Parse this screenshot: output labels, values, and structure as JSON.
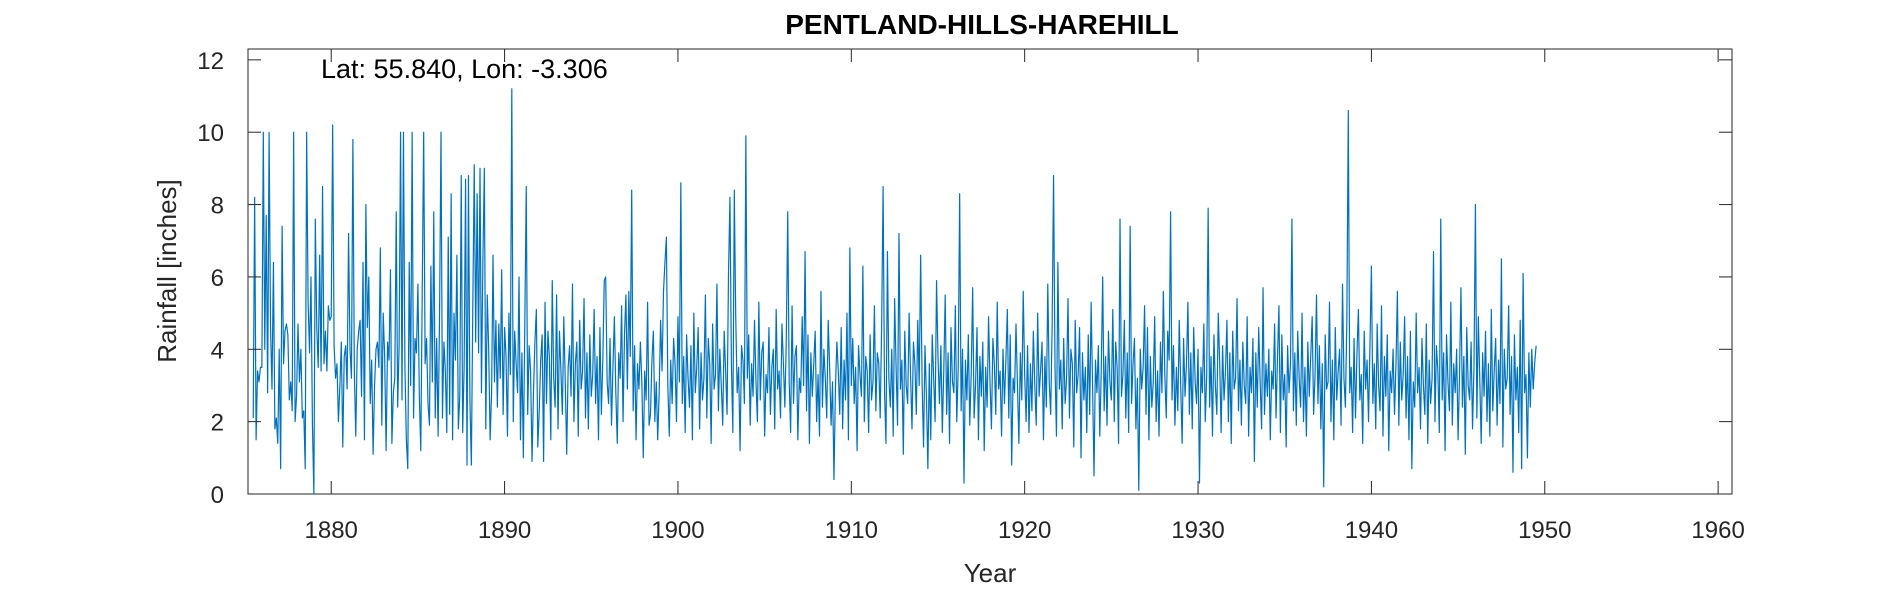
{
  "chart_data": {
    "type": "line",
    "title": "PENTLAND-HILLS-HAREHILL",
    "xlabel": "Year",
    "ylabel": "Rainfall [inches]",
    "annotation": "Lat: 55.840, Lon: -3.306",
    "xlim": [
      1875.2,
      1960.8
    ],
    "ylim": [
      0,
      12.3
    ],
    "xticks": [
      1880,
      1890,
      1900,
      1910,
      1920,
      1930,
      1940,
      1950,
      1960
    ],
    "yticks": [
      0,
      2,
      4,
      6,
      8,
      10,
      12
    ],
    "grid": false,
    "line_color": "#0072BD",
    "series": [
      {
        "x_start": 1875.5,
        "x_step": 0.0833333,
        "values": [
          2.1,
          8.2,
          1.5,
          3.4,
          3.1,
          3.5,
          3.5,
          10.0,
          4.0,
          7.7,
          2.8,
          10.0,
          4.6,
          2.9,
          6.4,
          1.8,
          2.1,
          1.4,
          4.0,
          0.7,
          7.4,
          3.6,
          4.5,
          4.7,
          4.4,
          2.6,
          3.1,
          2.3,
          10.0,
          2.0,
          2.7,
          4.7,
          3.1,
          4.0,
          2.1,
          2.3,
          0.7,
          10.0,
          5.3,
          3.9,
          6.0,
          1.9,
          0.0,
          7.6,
          4.6,
          3.5,
          6.6,
          3.4,
          8.5,
          3.6,
          4.5,
          3.4,
          5.2,
          4.8,
          4.9,
          10.2,
          4.1,
          3.2,
          3.6,
          2.0,
          3.0,
          4.2,
          1.3,
          3.8,
          4.1,
          2.9,
          7.2,
          4.0,
          3.2,
          9.8,
          3.4,
          1.6,
          4.0,
          4.5,
          4.8,
          2.7,
          6.4,
          1.5,
          8.0,
          4.6,
          6.0,
          2.5,
          3.7,
          1.1,
          3.0,
          4.0,
          4.2,
          3.5,
          6.8,
          1.9,
          5.0,
          3.8,
          1.2,
          4.2,
          3.7,
          6.2,
          1.4,
          2.8,
          3.2,
          7.8,
          2.4,
          4.1,
          10.0,
          2.6,
          10.0,
          3.6,
          1.5,
          0.7,
          6.4,
          3.0,
          10.0,
          2.1,
          4.3,
          3.9,
          5.8,
          2.7,
          1.2,
          5.6,
          10.0,
          3.6,
          4.3,
          2.5,
          1.9,
          6.3,
          3.1,
          7.8,
          2.1,
          4.3,
          1.6,
          5.0,
          10.0,
          2.1,
          4.2,
          3.4,
          1.7,
          7.1,
          2.2,
          8.3,
          1.5,
          5.0,
          3.7,
          6.6,
          1.8,
          2.7,
          8.8,
          1.7,
          3.5,
          8.7,
          0.8,
          8.8,
          2.6,
          0.8,
          5.2,
          9.1,
          4.2,
          8.3,
          3.9,
          9.0,
          2.8,
          6.5,
          9.0,
          1.8,
          5.5,
          4.0,
          1.5,
          2.8,
          6.6,
          3.1,
          4.8,
          2.4,
          4.7,
          3.2,
          6.2,
          2.2,
          4.6,
          3.8,
          1.6,
          5.0,
          3.3,
          11.2,
          2.0,
          4.5,
          3.6,
          2.8,
          6.0,
          1.5,
          3.9,
          1.0,
          4.7,
          8.5,
          2.2,
          4.1,
          3.4,
          0.9,
          2.8,
          4.2,
          5.1,
          1.3,
          2.3,
          3.7,
          4.4,
          0.9,
          5.3,
          2.5,
          4.5,
          3.8,
          1.5,
          5.9,
          3.2,
          2.4,
          5.5,
          1.8,
          4.5,
          3.4,
          2.2,
          4.9,
          3.1,
          1.1,
          3.5,
          4.1,
          2.7,
          5.8,
          2.0,
          3.6,
          4.2,
          1.6,
          4.8,
          2.9,
          3.4,
          5.4,
          2.1,
          3.9,
          1.8,
          4.4,
          2.7,
          3.3,
          5.1,
          2.5,
          3.8,
          1.5,
          4.6,
          2.2,
          3.7,
          5.9,
          6.0,
          3.1,
          2.5,
          4.3,
          1.9,
          3.5,
          4.9,
          2.8,
          1.4,
          3.9,
          3.2,
          5.2,
          2.0,
          4.4,
          5.5,
          2.9,
          5.6,
          3.8,
          8.4,
          2.3,
          4.1,
          1.5,
          3.6,
          2.9,
          4.2,
          3.1,
          1.0,
          3.4,
          2.6,
          5.3,
          1.9,
          2.2,
          3.7,
          4.5,
          2.0,
          3.1,
          1.5,
          2.8,
          4.8,
          3.4,
          5.6,
          6.4,
          7.1,
          3.0,
          1.6,
          3.7,
          2.5,
          4.3,
          3.6,
          2.0,
          4.9,
          3.1,
          8.6,
          2.5,
          3.8,
          1.7,
          4.4,
          3.2,
          2.4,
          4.1,
          1.5,
          5.0,
          2.8,
          3.5,
          4.6,
          1.8,
          3.9,
          2.6,
          3.2,
          5.5,
          2.1,
          4.3,
          3.6,
          1.4,
          4.7,
          2.9,
          3.3,
          5.8,
          2.3,
          4.0,
          3.0,
          1.9,
          4.5,
          3.4,
          2.2,
          6.1,
          8.2,
          3.6,
          1.7,
          8.4,
          4.9,
          2.8,
          3.5,
          1.2,
          4.1,
          3.7,
          2.5,
          9.9,
          3.2,
          4.4,
          1.9,
          3.6,
          2.7,
          4.8,
          3.1,
          2.0,
          5.3,
          2.6,
          3.9,
          4.2,
          1.6,
          3.3,
          2.8,
          4.6,
          2.2,
          3.5,
          4.0,
          1.8,
          5.1,
          2.9,
          3.4,
          2.1,
          4.7,
          3.6,
          2.4,
          4.3,
          7.8,
          3.1,
          1.7,
          5.2,
          2.5,
          3.8,
          4.1,
          1.5,
          3.2,
          2.8,
          4.9,
          3.0,
          6.7,
          2.3,
          4.4,
          1.4,
          3.9,
          2.7,
          3.6,
          4.5,
          2.0,
          3.3,
          1.6,
          5.6,
          2.4,
          4.0,
          3.2,
          2.1,
          4.8,
          3.5,
          1.9,
          3.1,
          0.4,
          2.9,
          4.2,
          3.4,
          2.2,
          4.6,
          1.8,
          3.7,
          2.6,
          5.0,
          1.5,
          6.8,
          3.0,
          4.3,
          2.5,
          3.5,
          1.2,
          4.1,
          3.3,
          2.7,
          6.3,
          2.0,
          3.8,
          3.4,
          1.7,
          4.4,
          2.6,
          3.1,
          5.2,
          2.3,
          3.9,
          3.6,
          2.1,
          4.7,
          8.5,
          2.8,
          1.4,
          6.7,
          3.2,
          2.4,
          4.0,
          1.6,
          5.4,
          3.5,
          1.9,
          7.2,
          2.9,
          3.7,
          1.1,
          4.5,
          3.0,
          2.5,
          5.0,
          3.3,
          1.8,
          4.2,
          3.6,
          2.2,
          4.8,
          3.0,
          6.6,
          3.1,
          1.3,
          4.1,
          2.7,
          0.7,
          3.6,
          1.5,
          4.4,
          3.2,
          2.0,
          5.9,
          3.8,
          2.5,
          4.1,
          1.7,
          3.4,
          5.5,
          2.2,
          3.9,
          1.4,
          4.6,
          3.1,
          2.8,
          5.2,
          2.0,
          3.5,
          8.3,
          2.3,
          4.0,
          0.3,
          3.7,
          2.6,
          4.4,
          1.9,
          3.3,
          5.7,
          2.1,
          3.0,
          4.6,
          1.5,
          3.8,
          2.7,
          4.2,
          1.2,
          3.5,
          2.4,
          4.9,
          3.1,
          1.8,
          4.3,
          3.6,
          2.2,
          5.3,
          2.9,
          3.4,
          1.6,
          4.0,
          2.5,
          3.7,
          5.1,
          2.1,
          4.4,
          0.8,
          3.2,
          2.8,
          4.7,
          3.0,
          1.4,
          3.9,
          2.6,
          5.6,
          3.3,
          2.0,
          4.1,
          1.7,
          3.6,
          2.3,
          4.5,
          3.0,
          1.9,
          5.0,
          2.7,
          3.4,
          4.2,
          1.5,
          3.8,
          2.4,
          5.8,
          3.1,
          2.2,
          4.6,
          8.8,
          3.5,
          1.6,
          6.4,
          2.9,
          3.7,
          1.8,
          4.3,
          2.5,
          3.2,
          5.4,
          2.1,
          4.0,
          3.6,
          1.3,
          4.8,
          2.8,
          3.3,
          4.6,
          1.0,
          3.9,
          2.6,
          3.5,
          1.7,
          4.4,
          2.2,
          5.3,
          3.0,
          0.5,
          3.7,
          2.8,
          4.1,
          1.6,
          3.4,
          6.0,
          2.3,
          3.8,
          1.9,
          4.5,
          3.1,
          2.6,
          5.1,
          2.0,
          4.2,
          3.5,
          1.4,
          7.6,
          2.7,
          3.3,
          4.8,
          2.1,
          3.9,
          1.7,
          7.4,
          2.5,
          3.6,
          4.3,
          1.8,
          3.2,
          0.1,
          4.0,
          2.9,
          3.5,
          5.2,
          2.2,
          4.6,
          1.5,
          3.8,
          2.4,
          3.1,
          4.9,
          2.0,
          3.4,
          1.6,
          4.2,
          2.8,
          5.6,
          3.3,
          2.1,
          4.5,
          3.7,
          7.8,
          2.6,
          4.1,
          1.9,
          3.5,
          2.3,
          4.8,
          3.0,
          1.4,
          4.3,
          2.7,
          3.6,
          5.3,
          2.2,
          3.9,
          1.8,
          4.6,
          3.1,
          2.5,
          4.0,
          0.3,
          3.5,
          2.8,
          4.7,
          2.0,
          3.3,
          7.9,
          2.4,
          3.8,
          1.6,
          4.4,
          3.0,
          2.2,
          5.0,
          3.6,
          1.7,
          4.1,
          2.6,
          3.4,
          4.8,
          2.0,
          3.9,
          1.4,
          4.5,
          2.9,
          3.2,
          5.4,
          2.3,
          3.7,
          1.9,
          4.2,
          3.0,
          2.5,
          4.9,
          1.6,
          3.5,
          2.8,
          4.3,
          0.9,
          3.9,
          2.4,
          4.6,
          3.1,
          1.8,
          5.7,
          2.2,
          3.6,
          2.7,
          4.0,
          1.5,
          3.4,
          2.9,
          4.7,
          2.1,
          3.8,
          5.2,
          1.7,
          4.4,
          2.6,
          3.3,
          1.3,
          4.1,
          2.8,
          3.6,
          7.6,
          2.3,
          3.9,
          1.9,
          4.5,
          3.2,
          2.4,
          5.0,
          2.0,
          3.5,
          1.6,
          4.2,
          2.7,
          3.8,
          4.9,
          2.2,
          3.3,
          5.5,
          2.5,
          4.1,
          1.8,
          3.6,
          0.2,
          4.4,
          2.9,
          3.1,
          5.3,
          2.0,
          3.7,
          1.5,
          4.6,
          2.6,
          3.4,
          4.0,
          1.9,
          5.8,
          3.2,
          2.4,
          4.8,
          10.6,
          2.8,
          3.5,
          1.7,
          4.3,
          2.1,
          3.9,
          5.1,
          2.6,
          3.3,
          1.4,
          4.5,
          2.9,
          3.7,
          2.0,
          4.1,
          6.3,
          2.5,
          3.6,
          1.8,
          4.7,
          3.0,
          2.3,
          5.2,
          1.6,
          3.8,
          2.7,
          4.4,
          1.2,
          3.4,
          2.8,
          4.0,
          2.2,
          3.6,
          5.6,
          1.9,
          4.2,
          2.6,
          3.3,
          4.9,
          2.1,
          3.8,
          1.5,
          4.5,
          0.7,
          3.1,
          2.4,
          5.0,
          2.8,
          3.5,
          1.8,
          4.3,
          3.0,
          2.2,
          4.7,
          1.4,
          3.7,
          2.5,
          3.2,
          6.7,
          2.0,
          4.1,
          3.4,
          1.7,
          7.6,
          2.6,
          3.9,
          1.2,
          4.4,
          3.1,
          2.3,
          5.3,
          1.9,
          3.6,
          2.8,
          4.0,
          1.5,
          3.3,
          5.7,
          2.4,
          3.8,
          1.1,
          4.6,
          3.0,
          2.6,
          4.2,
          1.8,
          3.5,
          8.0,
          2.1,
          4.9,
          3.2,
          1.4,
          3.9,
          2.7,
          4.5,
          2.0,
          3.6,
          1.6,
          5.1,
          2.3,
          3.4,
          4.3,
          1.9,
          3.7,
          2.5,
          6.5,
          1.3,
          4.0,
          2.9,
          3.2,
          5.2,
          2.2,
          3.8,
          0.6,
          4.4,
          2.6,
          3.5,
          1.7,
          4.8,
          0.7,
          6.1,
          2.8,
          3.3,
          1.0,
          3.9,
          2.4,
          4.0,
          2.9,
          3.6,
          4.1
        ]
      }
    ]
  }
}
